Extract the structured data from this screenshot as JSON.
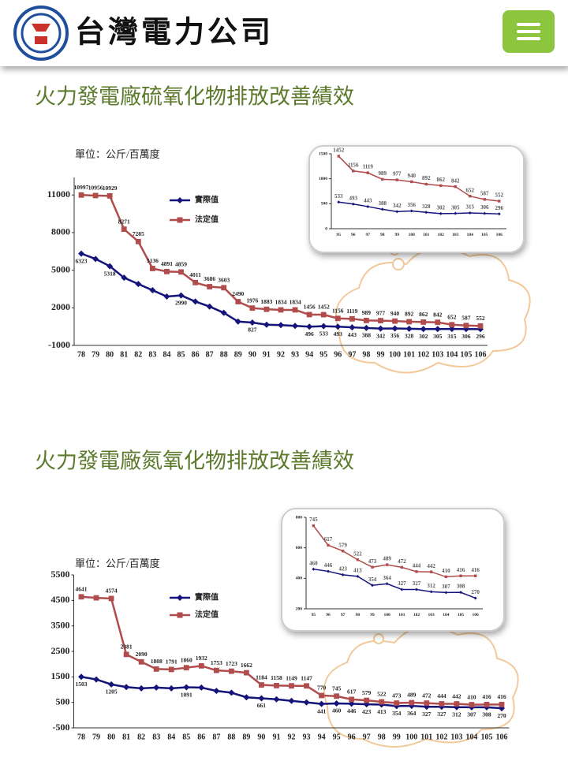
{
  "header": {
    "company": "台灣電力公司"
  },
  "sections": [
    {
      "title": "火力發電廠硫氧化物排放改善績效"
    },
    {
      "title": "火力發電廠氮氧化物排放改善績效"
    }
  ],
  "chart_data": [
    {
      "type": "line",
      "unit": "單位：公斤/百萬度",
      "categories": [
        "78",
        "79",
        "80",
        "81",
        "82",
        "83",
        "84",
        "85",
        "86",
        "87",
        "88",
        "89",
        "90",
        "91",
        "92",
        "93",
        "94",
        "95",
        "96",
        "97",
        "98",
        "99",
        "100",
        "101",
        "102",
        "103",
        "104",
        "105",
        "106"
      ],
      "ylim": [
        -1000,
        12400
      ],
      "yticks": [
        -1000,
        2000,
        5000,
        8000,
        11000
      ],
      "series": [
        {
          "name": "實際值",
          "color": "#14147a",
          "values": [
            6323,
            5900,
            5318,
            4400,
            3900,
            3400,
            2900,
            2990,
            2500,
            2100,
            1600,
            900,
            827,
            650,
            620,
            560,
            496,
            533,
            493,
            443,
            388,
            342,
            356,
            328,
            302,
            305,
            315,
            306,
            296
          ],
          "value_labels": [
            "6323",
            null,
            "5318",
            null,
            null,
            null,
            null,
            "2990",
            null,
            null,
            null,
            null,
            "827",
            null,
            null,
            null,
            "496",
            "533",
            "493",
            "443",
            "388",
            "342",
            "356",
            "328",
            "302",
            "305",
            "315",
            "306",
            "296"
          ]
        },
        {
          "name": "法定值",
          "color": "#b04c4c",
          "values": [
            10997,
            10956,
            10929,
            8271,
            7285,
            5136,
            4891,
            4859,
            4011,
            3686,
            3603,
            2490,
            1976,
            1883,
            1834,
            1834,
            1456,
            1452,
            1156,
            1119,
            989,
            977,
            940,
            892,
            862,
            842,
            652,
            587,
            552
          ],
          "value_labels": [
            "10997",
            "10956",
            "10929",
            "8271",
            "7285",
            "5136",
            "4891",
            "4859",
            "4011",
            "3686",
            "3603",
            "2490",
            "1976",
            "1883",
            "1834",
            "1834",
            "1456",
            "1452",
            "1156",
            "1119",
            "989",
            "977",
            "940",
            "892",
            "862",
            "842",
            "652",
            "587",
            "552"
          ]
        }
      ]
    },
    {
      "type": "line",
      "categories": [
        "95",
        "96",
        "97",
        "98",
        "99",
        "100",
        "101",
        "102",
        "103",
        "104",
        "105",
        "106"
      ],
      "ylim": [
        0,
        1500
      ],
      "yticks": [
        0,
        500,
        1000,
        1500
      ],
      "series": [
        {
          "color": "#14147a",
          "values": [
            533,
            493,
            443,
            388,
            342,
            356,
            328,
            302,
            305,
            315,
            306,
            296
          ],
          "value_labels": [
            "533",
            "493",
            "443",
            "388",
            "342",
            "356",
            "328",
            "302",
            "305",
            "315",
            "306",
            "296"
          ]
        },
        {
          "color": "#b04c4c",
          "values": [
            1452,
            1156,
            1119,
            989,
            977,
            940,
            892,
            862,
            842,
            652,
            587,
            552
          ],
          "value_labels": [
            "1452",
            "1156",
            "1119",
            "989",
            "977",
            "940",
            "892",
            "862",
            "842",
            "652",
            "587",
            "552"
          ]
        }
      ]
    },
    {
      "type": "line",
      "unit": "單位：公斤/百萬度",
      "categories": [
        "78",
        "79",
        "80",
        "81",
        "82",
        "83",
        "84",
        "85",
        "86",
        "87",
        "88",
        "89",
        "90",
        "91",
        "92",
        "93",
        "94",
        "95",
        "96",
        "97",
        "98",
        "99",
        "100",
        "101",
        "102",
        "103",
        "104",
        "105",
        "106"
      ],
      "ylim": [
        -500,
        5500
      ],
      "yticks": [
        -500,
        500,
        1500,
        2500,
        3500,
        4500,
        5500
      ],
      "series": [
        {
          "name": "實際值",
          "color": "#14147a",
          "values": [
            1503,
            1400,
            1205,
            1100,
            1050,
            1080,
            1050,
            1091,
            1080,
            950,
            880,
            700,
            661,
            620,
            560,
            500,
            441,
            460,
            446,
            423,
            413,
            354,
            364,
            327,
            327,
            312,
            307,
            308,
            270
          ],
          "value_labels": [
            "1503",
            null,
            "1205",
            null,
            null,
            null,
            null,
            "1091",
            null,
            null,
            null,
            null,
            "661",
            null,
            null,
            null,
            "441",
            "460",
            "446",
            "423",
            "413",
            "354",
            "364",
            "327",
            "327",
            "312",
            "307",
            "308",
            "270"
          ]
        },
        {
          "name": "法定值",
          "color": "#b04c4c",
          "values": [
            4641,
            4600,
            4574,
            2381,
            2090,
            1808,
            1791,
            1860,
            1932,
            1753,
            1723,
            1662,
            1184,
            1158,
            1149,
            1147,
            770,
            745,
            617,
            579,
            522,
            473,
            489,
            472,
            444,
            442,
            410,
            416,
            416
          ],
          "value_labels": [
            "4641",
            null,
            "4574",
            "2381",
            "2090",
            "1808",
            "1791",
            "1860",
            "1932",
            "1753",
            "1723",
            "1662",
            "1184",
            "1158",
            "1149",
            "1147",
            "770",
            "745",
            "617",
            "579",
            "522",
            "473",
            "489",
            "472",
            "444",
            "442",
            "410",
            "416",
            "416"
          ]
        }
      ]
    },
    {
      "type": "line",
      "categories": [
        "95",
        "96",
        "97",
        "98",
        "99",
        "100",
        "101",
        "102",
        "103",
        "104",
        "105",
        "106"
      ],
      "ylim": [
        200,
        800
      ],
      "yticks": [
        200,
        400,
        600,
        800
      ],
      "series": [
        {
          "color": "#14147a",
          "values": [
            460,
            446,
            423,
            413,
            354,
            364,
            327,
            327,
            312,
            307,
            308,
            270
          ],
          "value_labels": [
            "460",
            "446",
            "423",
            "413",
            "354",
            "364",
            "327",
            "327",
            "312",
            "307",
            "308",
            "270"
          ]
        },
        {
          "color": "#b04c4c",
          "values": [
            745,
            617,
            579,
            522,
            473,
            489,
            472,
            444,
            442,
            410,
            416,
            416
          ],
          "value_labels": [
            "745",
            "617",
            "579",
            "522",
            "473",
            "489",
            "472",
            "444",
            "442",
            "410",
            "416",
            "416"
          ]
        }
      ]
    }
  ]
}
